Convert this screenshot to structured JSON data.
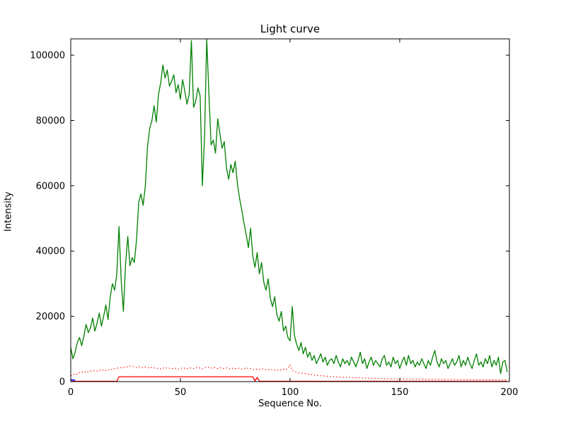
{
  "chart_data": {
    "type": "line",
    "title": "Light curve",
    "xlabel": "Sequence No.",
    "ylabel": "Intensity",
    "xlim": [
      0,
      200
    ],
    "ylim": [
      0,
      105000
    ],
    "x_ticks": [
      0,
      50,
      100,
      150,
      200
    ],
    "y_ticks": [
      0,
      20000,
      40000,
      60000,
      80000,
      100000
    ],
    "grid": false,
    "legend_position": "none",
    "background": "#ffffff",
    "frame_color": "#000000",
    "series": [
      {
        "name": "intensity-green",
        "color": "#008000",
        "style": "solid",
        "width": 1.3,
        "y": [
          10500,
          7000,
          9000,
          12000,
          13500,
          11000,
          14000,
          17500,
          15000,
          16500,
          19500,
          15500,
          18000,
          21000,
          17000,
          20000,
          23500,
          19000,
          26000,
          30000,
          28000,
          33000,
          47500,
          31000,
          21500,
          36000,
          44500,
          35500,
          38000,
          36500,
          43500,
          55000,
          57500,
          54000,
          60000,
          72000,
          77500,
          80000,
          84500,
          79500,
          88000,
          91500,
          97000,
          93000,
          95500,
          90500,
          92000,
          94000,
          88500,
          91000,
          86500,
          92500,
          89000,
          85000,
          88000,
          104500,
          84000,
          86000,
          90000,
          87500,
          60000,
          75000,
          105000,
          88000,
          72500,
          74000,
          70000,
          80500,
          76000,
          71500,
          73500,
          65500,
          62000,
          66500,
          64000,
          67500,
          60500,
          56000,
          52500,
          48500,
          45000,
          41000,
          47000,
          38500,
          35000,
          39500,
          33000,
          36500,
          30500,
          28000,
          31500,
          25500,
          23000,
          26000,
          20500,
          18500,
          21500,
          15500,
          17000,
          13500,
          12500,
          23000,
          14000,
          11500,
          9500,
          12000,
          8500,
          10500,
          7500,
          9000,
          6500,
          8000,
          5500,
          7000,
          8500,
          6000,
          7500,
          5000,
          6500,
          7000,
          5500,
          8000,
          6000,
          4500,
          7000,
          5500,
          6500,
          5000,
          7500,
          6000,
          4500,
          6500,
          9000,
          5500,
          7000,
          4000,
          6000,
          7500,
          5000,
          6500,
          5500,
          4500,
          7000,
          8000,
          5000,
          6000,
          4500,
          7500,
          5500,
          6500,
          4000,
          6000,
          7500,
          5000,
          8000,
          5500,
          6500,
          4500,
          6000,
          5000,
          7000,
          5500,
          4000,
          6500,
          5000,
          7500,
          9500,
          6000,
          4500,
          7000,
          5500,
          6500,
          4000,
          5500,
          7000,
          5000,
          6000,
          8000,
          4500,
          6500,
          5000,
          7500,
          5500,
          4000,
          6500,
          8500,
          5000,
          6000,
          4500,
          7000,
          5500,
          8000,
          4500,
          6500,
          5000,
          7500,
          2500,
          6000,
          6500,
          3000
        ]
      },
      {
        "name": "background-red-dotted",
        "color": "#ff0000",
        "style": "dotted",
        "width": 1.1,
        "y": [
          1800,
          2000,
          2500,
          2200,
          2800,
          3000,
          2700,
          3200,
          3000,
          3300,
          3100,
          3400,
          3200,
          3500,
          3300,
          3600,
          3400,
          3700,
          3500,
          3800,
          4000,
          4200,
          4100,
          4300,
          4500,
          4400,
          4600,
          4800,
          4700,
          4500,
          4300,
          4600,
          4400,
          4200,
          4500,
          4300,
          4100,
          4400,
          4200,
          4000,
          4100,
          3900,
          4200,
          4000,
          4300,
          4100,
          3900,
          4200,
          4000,
          3800,
          4000,
          4200,
          4100,
          3900,
          4300,
          4100,
          4000,
          4200,
          4400,
          4100,
          3900,
          4200,
          4500,
          4300,
          4100,
          4400,
          4200,
          4000,
          4300,
          4100,
          4000,
          4200,
          4000,
          3800,
          4100,
          3900,
          4200,
          4000,
          3800,
          4100,
          3900,
          4200,
          4000,
          3800,
          3600,
          3900,
          3700,
          4000,
          3800,
          3600,
          3700,
          3500,
          3800,
          3600,
          3400,
          3700,
          3500,
          3800,
          3600,
          4200,
          5200,
          3500,
          3000,
          2800,
          2600,
          2700,
          2500,
          2400,
          2300,
          2200,
          2100,
          2000,
          1900,
          1850,
          1800,
          1750,
          1700,
          1650,
          1600,
          1550,
          1500,
          1450,
          1400,
          1380,
          1350,
          1320,
          1300,
          1280,
          1250,
          1220,
          1200,
          1180,
          1150,
          1120,
          1100,
          1080,
          1060,
          1040,
          1020,
          1000,
          980,
          960,
          940,
          920,
          900,
          890,
          880,
          870,
          860,
          850,
          840,
          830,
          820,
          810,
          800,
          790,
          780,
          770,
          760,
          750,
          740,
          730,
          720,
          710,
          700,
          695,
          690,
          685,
          680,
          675,
          670,
          665,
          660,
          655,
          650,
          645,
          640,
          635,
          630,
          625,
          620,
          615,
          610,
          605,
          600,
          595,
          590,
          585,
          580,
          575,
          570,
          565,
          560,
          555,
          550,
          545,
          540,
          535,
          530,
          525
        ]
      },
      {
        "name": "flag-red-solid",
        "color": "#ff0000",
        "style": "solid",
        "width": 1.3,
        "y": [
          100,
          100,
          100,
          100,
          100,
          100,
          100,
          100,
          100,
          100,
          100,
          100,
          100,
          100,
          100,
          100,
          100,
          100,
          100,
          100,
          100,
          100,
          1500,
          1500,
          1500,
          1500,
          1500,
          1500,
          1500,
          1500,
          1500,
          1500,
          1500,
          1500,
          1500,
          1500,
          1500,
          1500,
          1500,
          1500,
          1500,
          1500,
          1500,
          1500,
          1500,
          1500,
          1500,
          1500,
          1500,
          1500,
          1500,
          1500,
          1500,
          1500,
          1500,
          1500,
          1500,
          1500,
          1500,
          1500,
          1500,
          1500,
          1500,
          1500,
          1500,
          1500,
          1500,
          1500,
          1500,
          1500,
          1500,
          1500,
          1500,
          1500,
          1500,
          1500,
          1500,
          1500,
          1500,
          1500,
          1500,
          1500,
          1500,
          1500,
          200,
          1300,
          150,
          100,
          100,
          100,
          100,
          100,
          100,
          100,
          100,
          100,
          100,
          100,
          100,
          100,
          100,
          100,
          100,
          100,
          100,
          100,
          100,
          100,
          100,
          100,
          100,
          100,
          100,
          100,
          100,
          100,
          100,
          100,
          100,
          100,
          100,
          100,
          100,
          100,
          100,
          100,
          100,
          100,
          100,
          100,
          100,
          100,
          100,
          100,
          100,
          100,
          100,
          100,
          100,
          100,
          100,
          100,
          100,
          100,
          100,
          100,
          100,
          100,
          100,
          100,
          100,
          100,
          100,
          100,
          100,
          100,
          100,
          100,
          100,
          100,
          100,
          100,
          100,
          100,
          100,
          100,
          100,
          100,
          100,
          100,
          100,
          100,
          100,
          100,
          100,
          100,
          100,
          100,
          100,
          100,
          100,
          100,
          100,
          100,
          100,
          100,
          100,
          100,
          100,
          100,
          100,
          100,
          100,
          100,
          100,
          100,
          100,
          100,
          100,
          100
        ]
      },
      {
        "name": "marker-blue",
        "color": "#0000ff",
        "style": "solid",
        "width": 1.6,
        "x": [
          0,
          1,
          2
        ],
        "y": [
          600,
          500,
          400
        ]
      }
    ]
  }
}
